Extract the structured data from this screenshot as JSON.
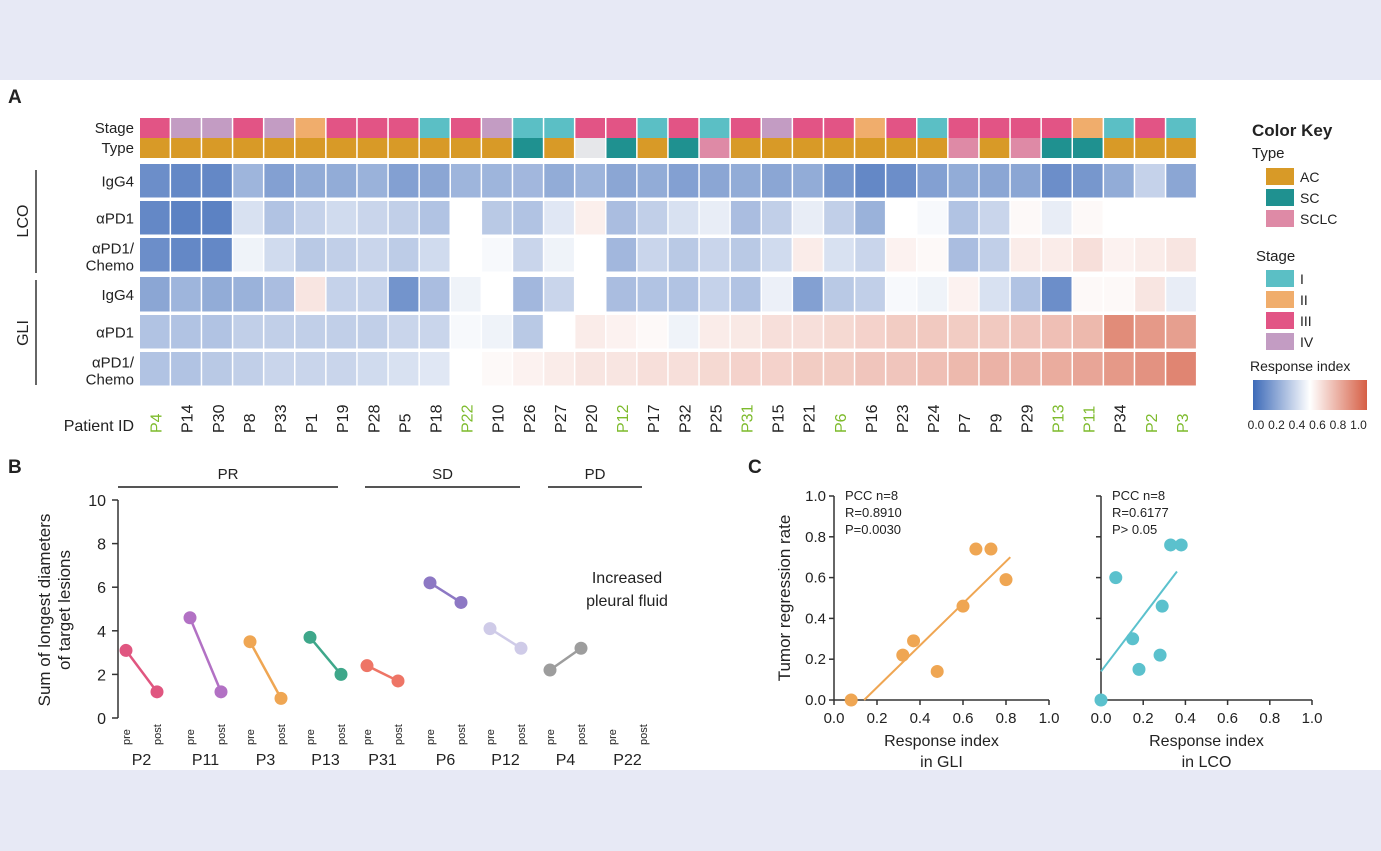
{
  "panel_labels": [
    "A",
    "B",
    "C"
  ],
  "heatmap": {
    "row_labels": [
      {
        "line1": "Stage",
        "line2": ""
      },
      {
        "line1": "Type",
        "line2": ""
      },
      {
        "line1": "IgG4",
        "line2": ""
      },
      {
        "line1": "αPD1",
        "line2": ""
      },
      {
        "line1": "αPD1/",
        "line2": "Chemo"
      },
      {
        "line1": "IgG4",
        "line2": ""
      },
      {
        "line1": "αPD1",
        "line2": ""
      },
      {
        "line1": "αPD1/",
        "line2": "Chemo"
      }
    ],
    "group_labels": [
      "LCO",
      "GLI"
    ],
    "patient_id_label": "Patient ID",
    "patients": [
      "P4",
      "P14",
      "P30",
      "P8",
      "P33",
      "P1",
      "P19",
      "P28",
      "P5",
      "P18",
      "P22",
      "P10",
      "P26",
      "P27",
      "P20",
      "P12",
      "P17",
      "P32",
      "P25",
      "P31",
      "P15",
      "P21",
      "P6",
      "P16",
      "P23",
      "P24",
      "P7",
      "P9",
      "P29",
      "P13",
      "P11",
      "P34",
      "P2",
      "P3"
    ],
    "highlighted_patients": [
      "P4",
      "P22",
      "P12",
      "P31",
      "P6",
      "P13",
      "P11",
      "P2",
      "P3"
    ],
    "highlight_color": "#7dbb2c",
    "stage": [
      "III",
      "IV",
      "IV",
      "III",
      "IV",
      "II",
      "III",
      "III",
      "III",
      "I",
      "III",
      "IV",
      "I",
      "I",
      "III",
      "III",
      "I",
      "III",
      "I",
      "III",
      "IV",
      "III",
      "III",
      "II",
      "III",
      "I",
      "III",
      "III",
      "III",
      "III",
      "II",
      "I",
      "III",
      "I"
    ],
    "type": [
      "AC",
      "AC",
      "AC",
      "AC",
      "AC",
      "AC",
      "AC",
      "AC",
      "AC",
      "AC",
      "AC",
      "AC",
      "SC",
      "AC",
      "none",
      "SC",
      "AC",
      "SC",
      "SCLC",
      "AC",
      "AC",
      "AC",
      "AC",
      "AC",
      "AC",
      "AC",
      "SCLC",
      "AC",
      "SCLC",
      "SC",
      "SC",
      "AC",
      "AC",
      "AC"
    ],
    "values": {
      "lco_igg4": [
        0.12,
        0.1,
        0.1,
        0.25,
        0.18,
        0.22,
        0.22,
        0.24,
        0.18,
        0.2,
        0.25,
        0.25,
        0.26,
        0.22,
        0.25,
        0.2,
        0.22,
        0.18,
        0.2,
        0.22,
        0.2,
        0.22,
        0.15,
        0.1,
        0.12,
        0.18,
        0.22,
        0.2,
        0.2,
        0.12,
        0.15,
        0.22,
        0.35,
        0.2
      ],
      "lco_apd1": [
        0.1,
        0.08,
        0.08,
        0.4,
        0.3,
        0.35,
        0.38,
        0.36,
        0.34,
        0.3,
        0.5,
        0.32,
        0.3,
        0.42,
        0.55,
        0.28,
        0.34,
        0.4,
        0.44,
        0.28,
        0.34,
        0.44,
        0.34,
        0.24,
        0.5,
        0.48,
        0.3,
        0.36,
        0.52,
        0.44,
        0.52,
        0.5,
        0.5,
        0.5
      ],
      "lco_chemo": [
        0.12,
        0.1,
        0.1,
        0.46,
        0.38,
        0.32,
        0.34,
        0.36,
        0.33,
        0.38,
        0.5,
        0.48,
        0.36,
        0.46,
        0.5,
        0.26,
        0.36,
        0.32,
        0.36,
        0.32,
        0.38,
        0.56,
        0.4,
        0.36,
        0.54,
        0.52,
        0.28,
        0.34,
        0.56,
        0.56,
        0.6,
        0.54,
        0.56,
        0.58
      ],
      "gli_igg4": [
        0.2,
        0.25,
        0.22,
        0.24,
        0.28,
        0.58,
        0.35,
        0.35,
        0.14,
        0.28,
        0.46,
        0.5,
        0.26,
        0.36,
        0.5,
        0.28,
        0.3,
        0.3,
        0.35,
        0.3,
        0.45,
        0.18,
        0.32,
        0.34,
        0.48,
        0.46,
        0.54,
        0.4,
        0.3,
        0.12,
        0.52,
        0.52,
        0.58,
        0.44
      ],
      "gli_apd1": [
        0.3,
        0.3,
        0.3,
        0.34,
        0.34,
        0.34,
        0.34,
        0.34,
        0.36,
        0.36,
        0.48,
        0.46,
        0.32,
        0.5,
        0.56,
        0.54,
        0.52,
        0.46,
        0.56,
        0.57,
        0.6,
        0.6,
        0.62,
        0.64,
        0.66,
        0.67,
        0.66,
        0.67,
        0.68,
        0.7,
        0.72,
        0.86,
        0.82,
        0.8
      ],
      "gli_chemo": [
        0.3,
        0.3,
        0.32,
        0.34,
        0.36,
        0.36,
        0.36,
        0.38,
        0.4,
        0.42,
        0.5,
        0.52,
        0.54,
        0.56,
        0.58,
        0.58,
        0.6,
        0.6,
        0.62,
        0.64,
        0.64,
        0.66,
        0.66,
        0.68,
        0.68,
        0.7,
        0.72,
        0.74,
        0.74,
        0.76,
        0.78,
        0.82,
        0.84,
        0.88
      ]
    }
  },
  "legend": {
    "title": "Color Key",
    "type_title": "Type",
    "type_items": [
      {
        "label": "AC",
        "color": "#d89a27"
      },
      {
        "label": "SC",
        "color": "#1f9190"
      },
      {
        "label": "SCLC",
        "color": "#de8aa6"
      }
    ],
    "stage_title": "Stage",
    "stage_items": [
      {
        "label": "I",
        "color": "#5bbfc5"
      },
      {
        "label": "II",
        "color": "#f0ad6c"
      },
      {
        "label": "III",
        "color": "#e25485"
      },
      {
        "label": "IV",
        "color": "#c39cc3"
      }
    ],
    "none_color": "#e6e7ea",
    "response_title": "Response index",
    "response_ticks": [
      "0.0",
      "0.2",
      "0.4",
      "0.6",
      "0.8",
      "1.0"
    ]
  },
  "panel_b": {
    "ylabel_line1": "Sum of longest diameters",
    "ylabel_line2": "of target lesions",
    "yticks": [
      "0",
      "2",
      "4",
      "6",
      "8",
      "10"
    ],
    "groups": [
      {
        "label": "PR",
        "patients": [
          "P2",
          "P11",
          "P3",
          "P13"
        ]
      },
      {
        "label": "SD",
        "patients": [
          "P31",
          "P6",
          "P12"
        ]
      },
      {
        "label": "PD",
        "patients": [
          "P4",
          "P22"
        ]
      }
    ],
    "pre_label": "pre",
    "post_label": "post",
    "annotation_line1": "Increased",
    "annotation_line2": "pleural fluid"
  },
  "panel_c": {
    "ylabel": "Tumor regression rate",
    "ticks": [
      "0.0",
      "0.2",
      "0.4",
      "0.6",
      "0.8",
      "1.0"
    ],
    "left": {
      "xlabel_line1": "Response index",
      "xlabel_line2": "in GLI",
      "stat_line1": "PCC n=8",
      "stat_line2": "R=0.8910",
      "stat_line3": "P=0.0030"
    },
    "right": {
      "xlabel_line1": "Response index",
      "xlabel_line2": "in LCO",
      "stat_line1": "PCC n=8",
      "stat_line2": "R=0.6177",
      "stat_line3": "P> 0.05"
    }
  },
  "chart_data": [
    {
      "type": "heatmap",
      "rows": [
        "LCO IgG4",
        "LCO αPD1",
        "LCO αPD1/Chemo",
        "GLI IgG4",
        "GLI αPD1",
        "GLI αPD1/Chemo"
      ],
      "columns": [
        "P4",
        "P14",
        "P30",
        "P8",
        "P33",
        "P1",
        "P19",
        "P28",
        "P5",
        "P18",
        "P22",
        "P10",
        "P26",
        "P27",
        "P20",
        "P12",
        "P17",
        "P32",
        "P25",
        "P31",
        "P15",
        "P21",
        "P6",
        "P16",
        "P23",
        "P24",
        "P7",
        "P9",
        "P29",
        "P13",
        "P11",
        "P34",
        "P2",
        "P3"
      ],
      "value_range": [
        0,
        1
      ],
      "colorscale": [
        "#3d6ab8",
        "#ffffff",
        "#d65f45"
      ]
    },
    {
      "type": "line",
      "xlabel": "",
      "ylabel": "Sum of longest diameters of target lesions",
      "ylim": [
        0,
        10
      ],
      "series": [
        {
          "name": "P2",
          "pre": 3.1,
          "post": 1.2,
          "color": "#e05680"
        },
        {
          "name": "P11",
          "pre": 4.6,
          "post": 1.2,
          "color": "#b271c4"
        },
        {
          "name": "P3",
          "pre": 3.5,
          "post": 0.9,
          "color": "#efa653"
        },
        {
          "name": "P13",
          "pre": 3.7,
          "post": 2.0,
          "color": "#3ea78a"
        },
        {
          "name": "P31",
          "pre": 2.4,
          "post": 1.7,
          "color": "#ee7566"
        },
        {
          "name": "P6",
          "pre": 6.2,
          "post": 5.3,
          "color": "#8d78c4"
        },
        {
          "name": "P12",
          "pre": 4.1,
          "post": 3.2,
          "color": "#cfcbe8"
        },
        {
          "name": "P4",
          "pre": 2.2,
          "post": 3.2,
          "color": "#9d9d9d"
        }
      ]
    },
    {
      "type": "scatter",
      "xlabel": "Response index in GLI",
      "ylabel": "Tumor regression rate",
      "xlim": [
        0,
        1
      ],
      "ylim": [
        0,
        1
      ],
      "x": [
        0.08,
        0.32,
        0.37,
        0.48,
        0.6,
        0.66,
        0.73,
        0.8
      ],
      "y": [
        0.0,
        0.22,
        0.29,
        0.14,
        0.46,
        0.74,
        0.74,
        0.59
      ],
      "fit": {
        "x": [
          0.14,
          0.82
        ],
        "y": [
          0.0,
          0.7
        ]
      },
      "color": "#efa653"
    },
    {
      "type": "scatter",
      "xlabel": "Response index in LCO",
      "ylabel": "",
      "xlim": [
        0,
        1
      ],
      "ylim": [
        0,
        1
      ],
      "x": [
        0.0,
        0.07,
        0.15,
        0.18,
        0.28,
        0.29,
        0.33,
        0.38
      ],
      "y": [
        0.0,
        0.6,
        0.3,
        0.15,
        0.22,
        0.46,
        0.76,
        0.76
      ],
      "fit": {
        "x": [
          0.0,
          0.36
        ],
        "y": [
          0.14,
          0.63
        ]
      },
      "color": "#5bc1cd"
    }
  ]
}
